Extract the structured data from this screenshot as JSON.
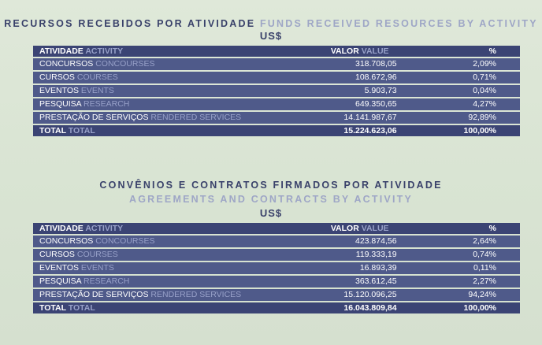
{
  "section1": {
    "title_pt": "RECURSOS RECEBIDOS POR ATIVIDADE",
    "title_en": "FUNDS RECEIVED RESOURCES BY ACTIVITY",
    "currency": "US$",
    "header": {
      "activity_pt": "ATIVIDADE",
      "activity_en": "ACTIVITY",
      "value_pt": "VALOR",
      "value_en": "VALUE",
      "pct": "%"
    },
    "rows": [
      {
        "pt": "CONCURSOS",
        "en": "CONCOURSES",
        "value": "318.708,05",
        "pct": "2,09%"
      },
      {
        "pt": "CURSOS",
        "en": "COURSES",
        "value": "108.672,96",
        "pct": "0,71%"
      },
      {
        "pt": "EVENTOS",
        "en": "EVENTS",
        "value": "5.903,73",
        "pct": "0,04%"
      },
      {
        "pt": "PESQUISA",
        "en": "RESEARCH",
        "value": "649.350,65",
        "pct": "4,27%"
      },
      {
        "pt": "PRESTAÇÃO DE SERVIÇOS",
        "en": "RENDERED SERVICES",
        "value": "14.141.987,67",
        "pct": "92,89%"
      }
    ],
    "total": {
      "pt": "TOTAL",
      "en": "TOTAL",
      "value": "15.224.623,06",
      "pct": "100,00%"
    }
  },
  "section2": {
    "title_pt": "CONVÊNIOS E CONTRATOS FIRMADOS POR ATIVIDADE",
    "title_en": "AGREEMENTS AND CONTRACTS BY ACTIVITY",
    "currency": "US$",
    "header": {
      "activity_pt": "ATIVIDADE",
      "activity_en": "ACTIVITY",
      "value_pt": "VALOR",
      "value_en": "VALUE",
      "pct": "%"
    },
    "rows": [
      {
        "pt": "CONCURSOS",
        "en": "CONCOURSES",
        "value": "423.874,56",
        "pct": "2,64%"
      },
      {
        "pt": "CURSOS",
        "en": "COURSES",
        "value": "119.333,19",
        "pct": "0,74%"
      },
      {
        "pt": "EVENTOS",
        "en": "EVENTS",
        "value": "16.893,39",
        "pct": "0,11%"
      },
      {
        "pt": "PESQUISA",
        "en": "RESEARCH",
        "value": "363.612,45",
        "pct": "2,27%"
      },
      {
        "pt": "PRESTAÇÃO DE SERVIÇOS",
        "en": "RENDERED SERVICES",
        "value": "15.120.096,25",
        "pct": "94,24%"
      }
    ],
    "total": {
      "pt": "TOTAL",
      "en": "TOTAL",
      "value": "16.043.809,84",
      "pct": "100,00%"
    }
  }
}
